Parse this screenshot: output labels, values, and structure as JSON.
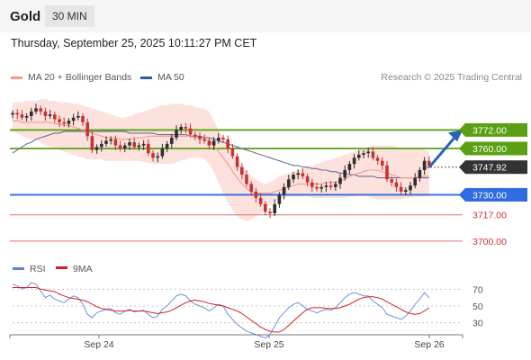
{
  "header": {
    "symbol": "Gold",
    "timeframe": "30 MIN"
  },
  "datetime": "Thursday, September 25, 2025 10:11:27 PM CET",
  "legend": {
    "bollinger_label": "MA 20 + Bollinger Bands",
    "ma50_label": "MA 50",
    "credit": "Research © 2025 Trading Central"
  },
  "colors": {
    "support_resistance": "#5aa012",
    "pivot": "#2f6ce0",
    "target": "#e07070",
    "current": "#333333",
    "candle_up": "#2f2f2f",
    "candle_down": "#c83232",
    "bands_fill": "#fbd7d2",
    "ma20": "#f29a8c",
    "ma50": "#6e6e9e",
    "rsi": "#5b86dd",
    "rsi_ma": "#d62020",
    "arrow": "#2a62b4"
  },
  "chart_data": {
    "type": "candlestick",
    "x_labels": [
      "Sep 24",
      "Sep 25",
      "Sep 26"
    ],
    "price_range": [
      3690,
      3795
    ],
    "levels": [
      {
        "value": 3772.0,
        "label": "3772.00",
        "kind": "resistance"
      },
      {
        "value": 3760.0,
        "label": "3760.00",
        "kind": "resistance"
      },
      {
        "value": 3747.92,
        "label": "3747.92",
        "kind": "current"
      },
      {
        "value": 3730.0,
        "label": "3730.00",
        "kind": "pivot"
      },
      {
        "value": 3717.0,
        "label": "3717.00",
        "kind": "target"
      },
      {
        "value": 3700.0,
        "label": "3700.00",
        "kind": "target"
      }
    ],
    "closes": [
      3783,
      3782,
      3780,
      3781,
      3784,
      3786,
      3784,
      3781,
      3782,
      3779,
      3777,
      3776,
      3778,
      3780,
      3781,
      3777,
      3768,
      3759,
      3761,
      3763,
      3765,
      3766,
      3762,
      3760,
      3762,
      3764,
      3761,
      3762,
      3763,
      3757,
      3754,
      3755,
      3760,
      3763,
      3767,
      3772,
      3774,
      3773,
      3769,
      3768,
      3766,
      3765,
      3762,
      3765,
      3767,
      3766,
      3760,
      3755,
      3748,
      3743,
      3737,
      3732,
      3728,
      3724,
      3719,
      3718,
      3724,
      3730,
      3735,
      3740,
      3743,
      3744,
      3742,
      3738,
      3735,
      3734,
      3735,
      3736,
      3735,
      3737,
      3741,
      3746,
      3750,
      3754,
      3756,
      3757,
      3758,
      3754,
      3752,
      3749,
      3740,
      3738,
      3735,
      3732,
      3733,
      3736,
      3741,
      3746,
      3752,
      3749
    ],
    "bands_upper": [
      3790,
      3790,
      3790,
      3791,
      3791,
      3791,
      3792,
      3792,
      3791,
      3791,
      3790,
      3790,
      3790,
      3789,
      3789,
      3788,
      3787,
      3786,
      3785,
      3784,
      3783,
      3782,
      3781,
      3780,
      3780,
      3781,
      3782,
      3783,
      3784,
      3785,
      3786,
      3787,
      3788,
      3788,
      3789,
      3789,
      3789,
      3788,
      3788,
      3787,
      3786,
      3786,
      3784,
      3778,
      3772,
      3767,
      3763,
      3758,
      3752,
      3748,
      3745,
      3742,
      3740,
      3738,
      3737,
      3738,
      3740,
      3742,
      3743,
      3744,
      3745,
      3746,
      3747,
      3748,
      3749,
      3750,
      3751,
      3752,
      3753,
      3754,
      3755,
      3756,
      3757,
      3758,
      3759,
      3760,
      3761,
      3762,
      3762,
      3762,
      3762,
      3762,
      3761,
      3760,
      3760,
      3760,
      3760,
      3760,
      3759,
      3758
    ],
    "bands_lower": [
      3771,
      3770,
      3768,
      3767,
      3766,
      3765,
      3764,
      3762,
      3761,
      3760,
      3759,
      3758,
      3757,
      3756,
      3755,
      3754,
      3753,
      3753,
      3753,
      3753,
      3752,
      3752,
      3752,
      3752,
      3752,
      3752,
      3752,
      3752,
      3751,
      3751,
      3750,
      3750,
      3750,
      3750,
      3750,
      3751,
      3752,
      3753,
      3754,
      3754,
      3754,
      3753,
      3750,
      3745,
      3738,
      3731,
      3725,
      3720,
      3716,
      3714,
      3713,
      3714,
      3716,
      3718,
      3721,
      3724,
      3726,
      3727,
      3728,
      3729,
      3729,
      3729,
      3729,
      3729,
      3728,
      3728,
      3728,
      3728,
      3728,
      3728,
      3728,
      3728,
      3729,
      3729,
      3730,
      3730,
      3729,
      3728,
      3727,
      3727,
      3727,
      3727,
      3727,
      3727,
      3728,
      3728,
      3729,
      3729,
      3729,
      3729
    ],
    "ma20": [
      3778,
      3778,
      3777,
      3777,
      3777,
      3777,
      3777,
      3777,
      3777,
      3776,
      3776,
      3775,
      3775,
      3774,
      3773,
      3772,
      3771,
      3770,
      3769,
      3768,
      3767,
      3767,
      3767,
      3766,
      3766,
      3766,
      3767,
      3767,
      3767,
      3768,
      3768,
      3768,
      3768,
      3768,
      3768,
      3768,
      3768,
      3768,
      3768,
      3767,
      3767,
      3766,
      3765,
      3762,
      3758,
      3754,
      3750,
      3745,
      3741,
      3737,
      3734,
      3732,
      3731,
      3731,
      3731,
      3731,
      3732,
      3733,
      3734,
      3735,
      3736,
      3737,
      3737,
      3737,
      3737,
      3737,
      3737,
      3738,
      3738,
      3738,
      3739,
      3740,
      3742,
      3743,
      3744,
      3745,
      3746,
      3746,
      3746,
      3745,
      3744,
      3743,
      3742,
      3741,
      3741,
      3741,
      3741,
      3742,
      3742,
      3742
    ],
    "ma50": [
      3757,
      3759,
      3761,
      3763,
      3764,
      3766,
      3767,
      3768,
      3769,
      3770,
      3770,
      3771,
      3771,
      3771,
      3771,
      3771,
      3771,
      3771,
      3771,
      3771,
      3771,
      3771,
      3771,
      3771,
      3771,
      3770,
      3770,
      3770,
      3770,
      3770,
      3770,
      3769,
      3769,
      3769,
      3769,
      3769,
      3769,
      3769,
      3768,
      3768,
      3768,
      3767,
      3767,
      3766,
      3765,
      3764,
      3763,
      3762,
      3761,
      3760,
      3759,
      3758,
      3757,
      3756,
      3755,
      3754,
      3753,
      3752,
      3751,
      3750,
      3749,
      3749,
      3748,
      3748,
      3747,
      3747,
      3746,
      3746,
      3745,
      3745,
      3744,
      3744,
      3743,
      3743,
      3742,
      3742,
      3742,
      3742,
      3741,
      3741,
      3741,
      3741,
      3741,
      3741,
      3741,
      3741,
      3741,
      3741,
      3741,
      3741
    ],
    "rsi": {
      "ticks": [
        70,
        50,
        30
      ],
      "legend": [
        "RSI",
        "9MA"
      ],
      "values": [
        76,
        74,
        70,
        72,
        78,
        76,
        68,
        60,
        63,
        58,
        56,
        54,
        58,
        62,
        60,
        52,
        40,
        36,
        42,
        44,
        46,
        47,
        42,
        40,
        44,
        46,
        43,
        44,
        45,
        40,
        36,
        38,
        46,
        50,
        56,
        62,
        64,
        62,
        56,
        52,
        50,
        48,
        44,
        48,
        52,
        50,
        40,
        34,
        28,
        24,
        20,
        18,
        16,
        14,
        12,
        16,
        26,
        36,
        42,
        48,
        52,
        54,
        50,
        46,
        44,
        42,
        44,
        46,
        45,
        48,
        54,
        60,
        64,
        66,
        64,
        62,
        62,
        56,
        52,
        48,
        40,
        38,
        36,
        34,
        38,
        44,
        52,
        58,
        66,
        60
      ],
      "ma9": [
        72,
        72,
        72,
        72,
        72,
        72,
        70,
        69,
        68,
        67,
        64,
        62,
        60,
        59,
        58,
        57,
        55,
        52,
        49,
        47,
        46,
        45,
        44,
        44,
        44,
        45,
        44,
        44,
        44,
        43,
        42,
        41,
        42,
        43,
        45,
        48,
        51,
        54,
        56,
        57,
        56,
        55,
        53,
        52,
        51,
        50,
        48,
        46,
        44,
        41,
        37,
        33,
        29,
        25,
        22,
        20,
        19,
        19,
        22,
        27,
        32,
        37,
        42,
        46,
        48,
        48,
        48,
        47,
        47,
        47,
        48,
        50,
        52,
        55,
        58,
        60,
        61,
        61,
        60,
        58,
        55,
        52,
        49,
        46,
        43,
        41,
        40,
        41,
        44,
        48
      ]
    }
  }
}
